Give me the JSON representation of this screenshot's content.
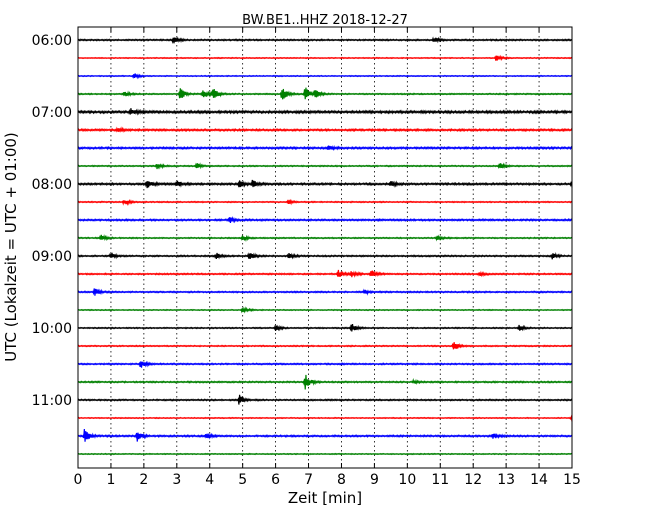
{
  "chart_data": {
    "type": "line",
    "title": "BW.BE1..HHZ 2018-12-27",
    "xlabel": "Zeit  [min]",
    "ylabel": "UTC (Lokalzeit = UTC + 01:00)",
    "xlim": [
      0,
      15
    ],
    "x_ticks": [
      "0",
      "1",
      "2",
      "3",
      "4",
      "5",
      "6",
      "7",
      "8",
      "9",
      "10",
      "11",
      "12",
      "13",
      "14",
      "15"
    ],
    "y_tick_labels": [
      "06:00",
      "07:00",
      "08:00",
      "09:00",
      "10:00",
      "11:00"
    ],
    "grid": "vertical dotted",
    "trace_colors": [
      "#000000",
      "#ff0000",
      "#0000ff",
      "#008000"
    ],
    "traces_per_hour": 4,
    "trace_interval_min": 15,
    "series": [
      {
        "start": "06:00",
        "color": "#000000",
        "noise": 0.6,
        "events": [
          {
            "t": 2.9,
            "amp": 4
          },
          {
            "t": 10.8,
            "amp": 3
          }
        ]
      },
      {
        "start": "06:15",
        "color": "#ff0000",
        "noise": 0.4,
        "events": [
          {
            "t": 12.7,
            "amp": 3
          }
        ]
      },
      {
        "start": "06:30",
        "color": "#0000ff",
        "noise": 0.4,
        "events": [
          {
            "t": 1.7,
            "amp": 3
          }
        ]
      },
      {
        "start": "06:45",
        "color": "#008000",
        "noise": 0.5,
        "events": [
          {
            "t": 1.4,
            "amp": 3
          },
          {
            "t": 3.1,
            "amp": 7
          },
          {
            "t": 3.8,
            "amp": 5
          },
          {
            "t": 4.1,
            "amp": 6
          },
          {
            "t": 6.2,
            "amp": 8
          },
          {
            "t": 6.9,
            "amp": 7
          },
          {
            "t": 7.2,
            "amp": 4
          }
        ]
      },
      {
        "start": "07:00",
        "color": "#000000",
        "noise": 1.0,
        "events": [
          {
            "t": 1.6,
            "amp": 3
          }
        ]
      },
      {
        "start": "07:15",
        "color": "#ff0000",
        "noise": 0.8,
        "events": [
          {
            "t": 1.2,
            "amp": 2
          }
        ]
      },
      {
        "start": "07:30",
        "color": "#0000ff",
        "noise": 0.8,
        "events": [
          {
            "t": 7.6,
            "amp": 2
          }
        ]
      },
      {
        "start": "07:45",
        "color": "#008000",
        "noise": 0.5,
        "events": [
          {
            "t": 2.4,
            "amp": 3
          },
          {
            "t": 3.6,
            "amp": 3
          },
          {
            "t": 12.8,
            "amp": 4
          }
        ]
      },
      {
        "start": "08:00",
        "color": "#000000",
        "noise": 0.8,
        "events": [
          {
            "t": 2.1,
            "amp": 4
          },
          {
            "t": 3.0,
            "amp": 3
          },
          {
            "t": 4.9,
            "amp": 3
          },
          {
            "t": 5.3,
            "amp": 4
          },
          {
            "t": 9.5,
            "amp": 3
          },
          {
            "t": 15.0,
            "amp": 4
          }
        ]
      },
      {
        "start": "08:15",
        "color": "#ff0000",
        "noise": 0.5,
        "events": [
          {
            "t": 1.4,
            "amp": 3
          },
          {
            "t": 6.4,
            "amp": 2
          }
        ]
      },
      {
        "start": "08:30",
        "color": "#0000ff",
        "noise": 0.7,
        "events": [
          {
            "t": 4.6,
            "amp": 3
          }
        ]
      },
      {
        "start": "08:45",
        "color": "#008000",
        "noise": 0.5,
        "events": [
          {
            "t": 0.7,
            "amp": 3
          },
          {
            "t": 5.0,
            "amp": 3
          },
          {
            "t": 10.9,
            "amp": 2
          }
        ]
      },
      {
        "start": "09:00",
        "color": "#000000",
        "noise": 0.6,
        "events": [
          {
            "t": 1.0,
            "amp": 3
          },
          {
            "t": 4.2,
            "amp": 3
          },
          {
            "t": 5.2,
            "amp": 4
          },
          {
            "t": 6.4,
            "amp": 3
          },
          {
            "t": 14.4,
            "amp": 3
          }
        ]
      },
      {
        "start": "09:15",
        "color": "#ff0000",
        "noise": 0.6,
        "events": [
          {
            "t": 7.9,
            "amp": 4
          },
          {
            "t": 8.3,
            "amp": 3
          },
          {
            "t": 8.9,
            "amp": 4
          },
          {
            "t": 12.2,
            "amp": 2
          }
        ]
      },
      {
        "start": "09:30",
        "color": "#0000ff",
        "noise": 0.6,
        "events": [
          {
            "t": 0.5,
            "amp": 4
          },
          {
            "t": 8.7,
            "amp": 2
          }
        ]
      },
      {
        "start": "09:45",
        "color": "#008000",
        "noise": 0.4,
        "events": [
          {
            "t": 5.0,
            "amp": 3
          }
        ]
      },
      {
        "start": "10:00",
        "color": "#000000",
        "noise": 0.5,
        "events": [
          {
            "t": 6.0,
            "amp": 3
          },
          {
            "t": 8.3,
            "amp": 5
          },
          {
            "t": 13.4,
            "amp": 3
          }
        ]
      },
      {
        "start": "10:15",
        "color": "#ff0000",
        "noise": 0.5,
        "events": [
          {
            "t": 11.4,
            "amp": 6
          }
        ]
      },
      {
        "start": "10:30",
        "color": "#0000ff",
        "noise": 0.6,
        "events": [
          {
            "t": 1.9,
            "amp": 4
          }
        ]
      },
      {
        "start": "10:45",
        "color": "#008000",
        "noise": 0.6,
        "events": [
          {
            "t": 6.9,
            "amp": 9
          },
          {
            "t": 10.2,
            "amp": 2
          }
        ]
      },
      {
        "start": "11:00",
        "color": "#000000",
        "noise": 0.6,
        "events": [
          {
            "t": 4.9,
            "amp": 5
          }
        ]
      },
      {
        "start": "11:15",
        "color": "#ff0000",
        "noise": 0.4,
        "events": [
          {
            "t": 15.0,
            "amp": 3
          }
        ]
      },
      {
        "start": "11:30",
        "color": "#0000ff",
        "noise": 0.7,
        "events": [
          {
            "t": 0.2,
            "amp": 7
          },
          {
            "t": 1.8,
            "amp": 5
          },
          {
            "t": 3.9,
            "amp": 2
          },
          {
            "t": 12.6,
            "amp": 3
          }
        ]
      },
      {
        "start": "11:45",
        "color": "#008000",
        "noise": 0.4,
        "events": []
      }
    ]
  }
}
